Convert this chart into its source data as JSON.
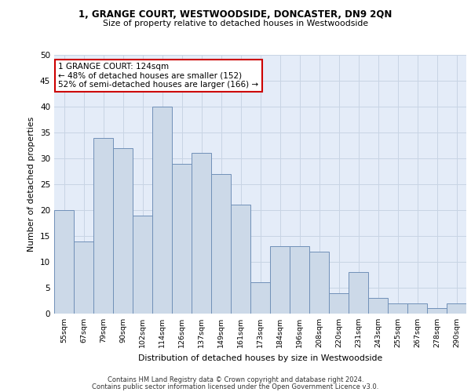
{
  "title1": "1, GRANGE COURT, WESTWOODSIDE, DONCASTER, DN9 2QN",
  "title2": "Size of property relative to detached houses in Westwoodside",
  "xlabel": "Distribution of detached houses by size in Westwoodside",
  "ylabel": "Number of detached properties",
  "bin_labels": [
    "55sqm",
    "67sqm",
    "79sqm",
    "90sqm",
    "102sqm",
    "114sqm",
    "126sqm",
    "137sqm",
    "149sqm",
    "161sqm",
    "173sqm",
    "184sqm",
    "196sqm",
    "208sqm",
    "220sqm",
    "231sqm",
    "243sqm",
    "255sqm",
    "267sqm",
    "278sqm",
    "290sqm"
  ],
  "bar_heights": [
    20,
    14,
    34,
    32,
    19,
    40,
    29,
    31,
    27,
    21,
    6,
    13,
    13,
    12,
    4,
    8,
    3,
    2,
    2,
    1,
    2
  ],
  "bar_color": "#ccd9e8",
  "bar_edge_color": "#7090b8",
  "annotation_text": "1 GRANGE COURT: 124sqm\n← 48% of detached houses are smaller (152)\n52% of semi-detached houses are larger (166) →",
  "annotation_box_color": "#ffffff",
  "annotation_box_edge_color": "#cc0000",
  "ylim": [
    0,
    50
  ],
  "yticks": [
    0,
    5,
    10,
    15,
    20,
    25,
    30,
    35,
    40,
    45,
    50
  ],
  "grid_color": "#c8d4e4",
  "bg_color": "#e4ecf8",
  "footer1": "Contains HM Land Registry data © Crown copyright and database right 2024.",
  "footer2": "Contains public sector information licensed under the Open Government Licence v3.0."
}
